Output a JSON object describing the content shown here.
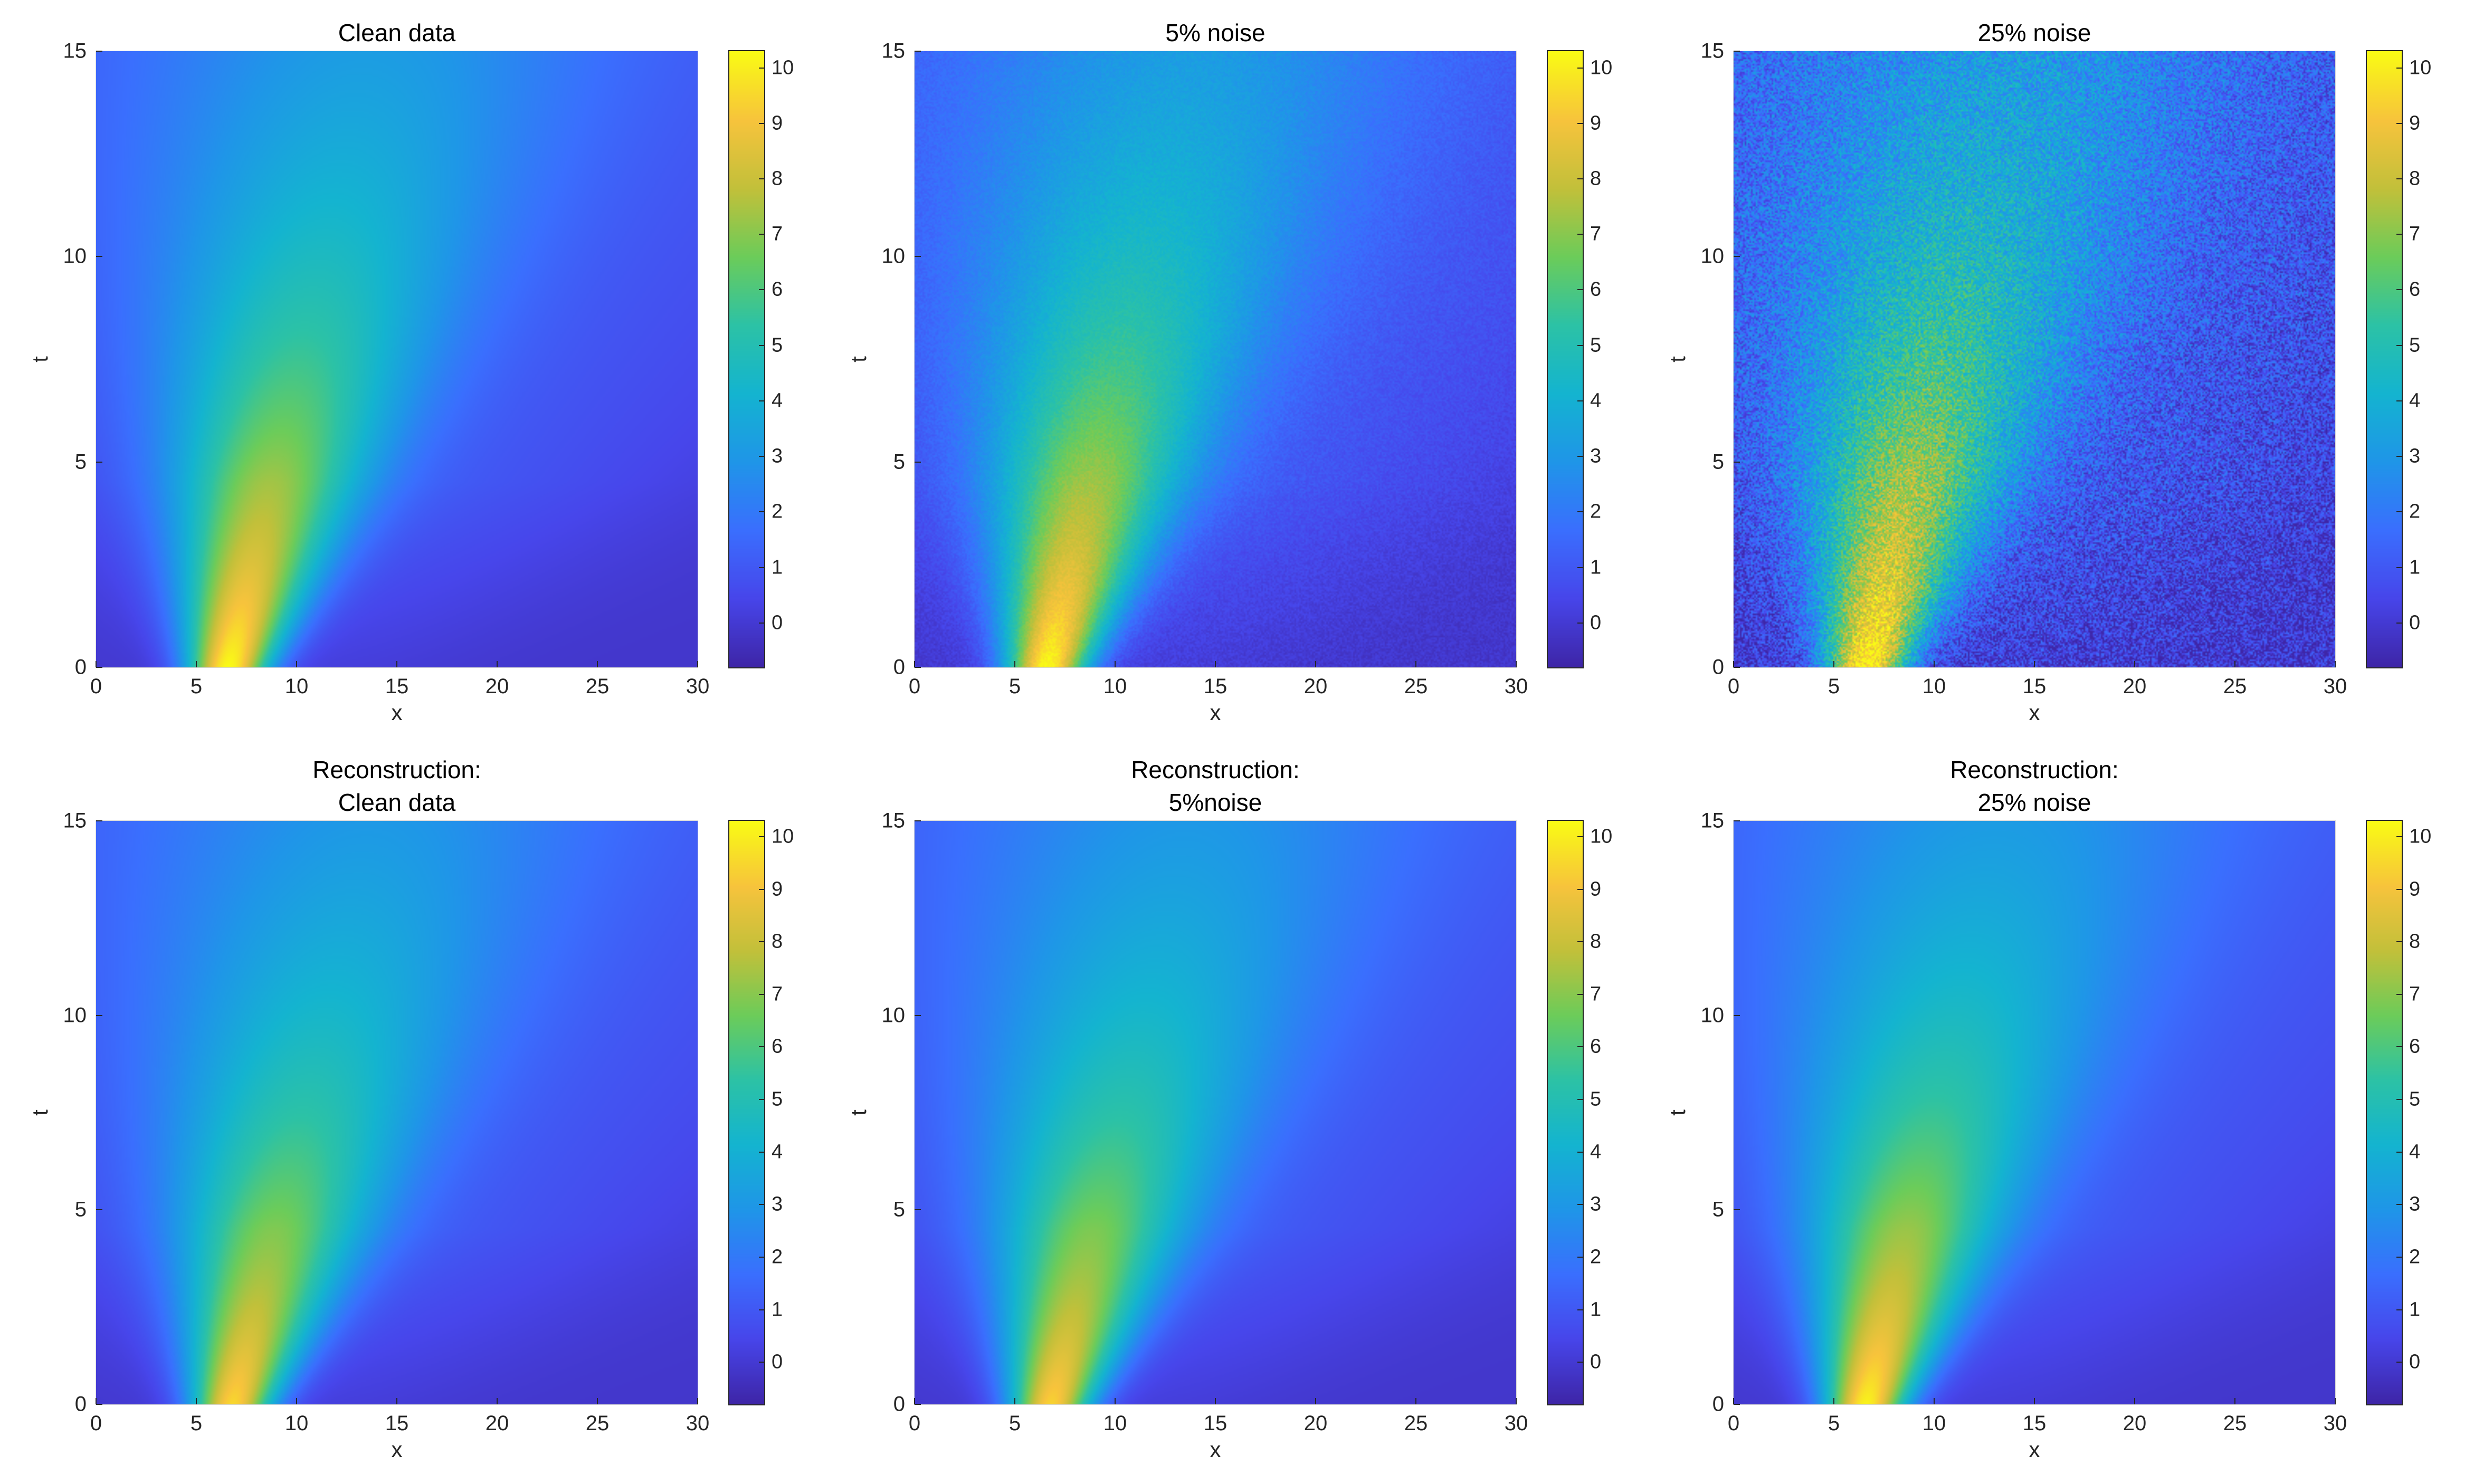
{
  "chart_data": [
    {
      "type": "heatmap",
      "panel": "clean",
      "title": [
        "Clean data"
      ],
      "xlabel": "x",
      "ylabel": "t",
      "xlim": [
        0,
        30
      ],
      "ylim": [
        0,
        15
      ],
      "xticks": [
        0,
        5,
        10,
        15,
        20,
        25,
        30
      ],
      "yticks": [
        0,
        5,
        10,
        15
      ],
      "colorbar": {
        "range": [
          -0.8,
          10.3
        ],
        "ticks": [
          0,
          1,
          2,
          3,
          4,
          5,
          6,
          7,
          8,
          9,
          10
        ],
        "colormap": "parula"
      },
      "field": {
        "peak_value": 10.2,
        "peak_x": 6.6,
        "peak_t": 0,
        "drift_speed": 0.45,
        "noise": 0
      }
    },
    {
      "type": "heatmap",
      "panel": "noise5",
      "title": [
        "5% noise"
      ],
      "xlabel": "x",
      "ylabel": "t",
      "xlim": [
        0,
        30
      ],
      "ylim": [
        0,
        15
      ],
      "xticks": [
        0,
        5,
        10,
        15,
        20,
        25,
        30
      ],
      "yticks": [
        0,
        5,
        10,
        15
      ],
      "colorbar": {
        "range": [
          -0.8,
          10.3
        ],
        "ticks": [
          0,
          1,
          2,
          3,
          4,
          5,
          6,
          7,
          8,
          9,
          10
        ],
        "colormap": "parula"
      },
      "field": {
        "peak_value": 10.2,
        "peak_x": 6.6,
        "peak_t": 0,
        "drift_speed": 0.45,
        "noise": 0.05
      }
    },
    {
      "type": "heatmap",
      "panel": "noise25",
      "title": [
        "25% noise"
      ],
      "xlabel": "x",
      "ylabel": "t",
      "xlim": [
        0,
        30
      ],
      "ylim": [
        0,
        15
      ],
      "xticks": [
        0,
        5,
        10,
        15,
        20,
        25,
        30
      ],
      "yticks": [
        0,
        5,
        10,
        15
      ],
      "colorbar": {
        "range": [
          -0.8,
          10.3
        ],
        "ticks": [
          0,
          1,
          2,
          3,
          4,
          5,
          6,
          7,
          8,
          9,
          10
        ],
        "colormap": "parula"
      },
      "field": {
        "peak_value": 10.2,
        "peak_x": 6.6,
        "peak_t": 0,
        "drift_speed": 0.45,
        "noise": 0.25
      }
    },
    {
      "type": "heatmap",
      "panel": "recon-clean",
      "title": [
        "Reconstruction:",
        "Clean data"
      ],
      "xlabel": "x",
      "ylabel": "t",
      "xlim": [
        0,
        30
      ],
      "ylim": [
        0,
        15
      ],
      "xticks": [
        0,
        5,
        10,
        15,
        20,
        25,
        30
      ],
      "yticks": [
        0,
        5,
        10,
        15
      ],
      "colorbar": {
        "range": [
          -0.8,
          10.3
        ],
        "ticks": [
          0,
          1,
          2,
          3,
          4,
          5,
          6,
          7,
          8,
          9,
          10
        ],
        "colormap": "parula"
      },
      "field": {
        "peak_value": 9.4,
        "peak_x": 6.8,
        "peak_t": 0.5,
        "drift_speed": 0.45,
        "noise": 0
      }
    },
    {
      "type": "heatmap",
      "panel": "recon-noise5",
      "title": [
        "Reconstruction:",
        "5%noise"
      ],
      "xlabel": "x",
      "ylabel": "t",
      "xlim": [
        0,
        30
      ],
      "ylim": [
        0,
        15
      ],
      "xticks": [
        0,
        5,
        10,
        15,
        20,
        25,
        30
      ],
      "yticks": [
        0,
        5,
        10,
        15
      ],
      "colorbar": {
        "range": [
          -0.8,
          10.3
        ],
        "ticks": [
          0,
          1,
          2,
          3,
          4,
          5,
          6,
          7,
          8,
          9,
          10
        ],
        "colormap": "parula"
      },
      "field": {
        "peak_value": 9.3,
        "peak_x": 6.8,
        "peak_t": 0.5,
        "drift_speed": 0.45,
        "noise": 0
      }
    },
    {
      "type": "heatmap",
      "panel": "recon-noise25",
      "title": [
        "Reconstruction:",
        "25% noise"
      ],
      "xlabel": "x",
      "ylabel": "t",
      "xlim": [
        0,
        30
      ],
      "ylim": [
        0,
        15
      ],
      "xticks": [
        0,
        5,
        10,
        15,
        20,
        25,
        30
      ],
      "yticks": [
        0,
        5,
        10,
        15
      ],
      "colorbar": {
        "range": [
          -0.8,
          10.3
        ],
        "ticks": [
          0,
          1,
          2,
          3,
          4,
          5,
          6,
          7,
          8,
          9,
          10
        ],
        "colormap": "parula"
      },
      "field": {
        "peak_value": 10.0,
        "peak_x": 6.6,
        "peak_t": 0.3,
        "drift_speed": 0.43,
        "noise": 0
      }
    }
  ],
  "colors": {
    "colormap_stops": [
      "#3e26a8",
      "#4746eb",
      "#3a6ffe",
      "#1f96e8",
      "#14b4d0",
      "#2cc2a6",
      "#6ccc5a",
      "#c2c03a",
      "#f7c33c",
      "#f9fb15"
    ],
    "axis": "#262626",
    "background": "#ffffff"
  }
}
